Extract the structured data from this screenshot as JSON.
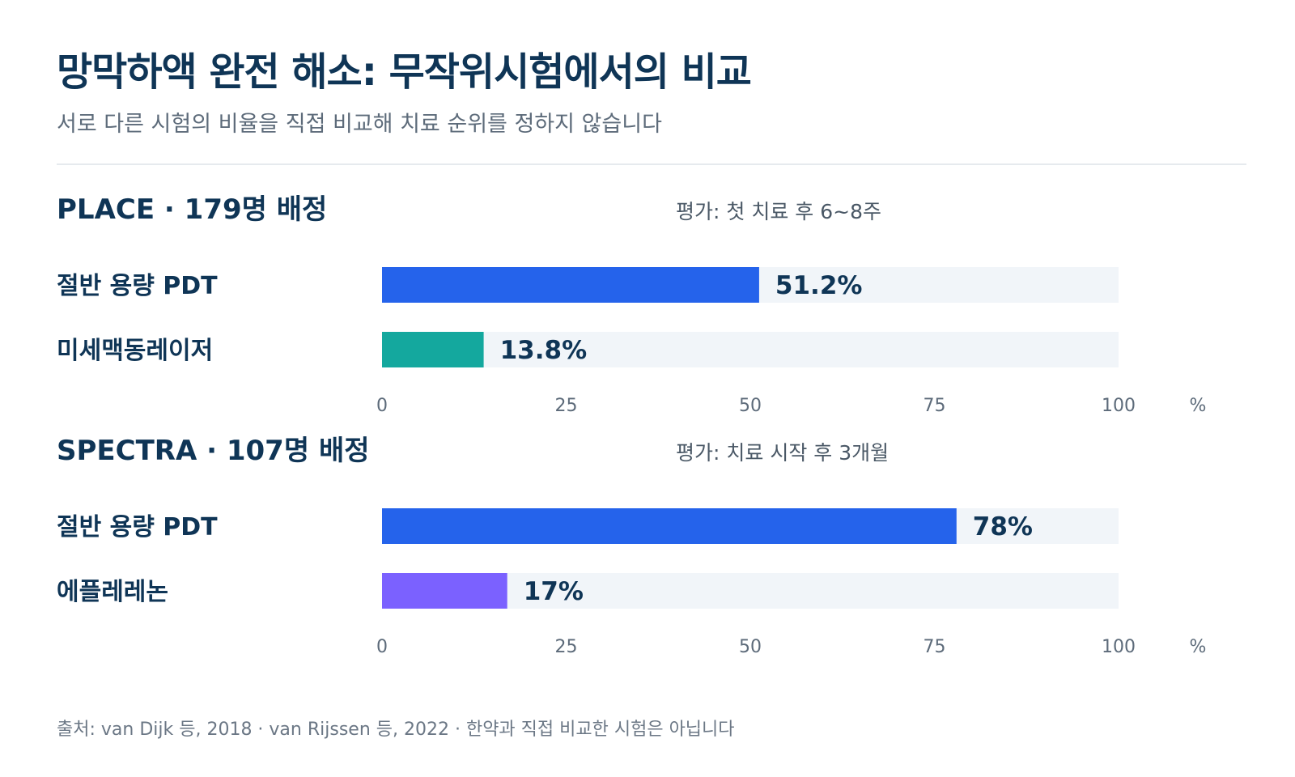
{
  "title": "망막하액 완전 해소: 무작위시험에서의 비교",
  "subtitle": "서로 다른 시험의 비율을 직접 비교해 치료 순위를 정하지 않습니다",
  "source": "출처: van Dijk 등, 2018 · van Rijssen 등, 2022 · 한약과 직접 비교한 시험은 아닙니다",
  "colors": {
    "half_dose_pdt": "#2563eb",
    "micropulse_laser": "#14a89e",
    "eplerenone": "#7b61ff",
    "track": "#f1f5f9",
    "text_dark": "#0f3556",
    "text_muted": "#5d6b7a"
  },
  "chart_data": [
    {
      "type": "bar",
      "orientation": "horizontal",
      "title": "PLACE · 179명 배정",
      "note": "평가: 첫 치료 후 6~8주",
      "categories": [
        "절반 용량 PDT",
        "미세맥동레이저"
      ],
      "values": [
        51.2,
        13.8
      ],
      "value_labels": [
        "51.2%",
        "13.8%"
      ],
      "colors": [
        "#2563eb",
        "#14a89e"
      ],
      "xlim": [
        0,
        100
      ],
      "xticks": [
        "0",
        "25",
        "50",
        "75",
        "100"
      ],
      "xunit": "%"
    },
    {
      "type": "bar",
      "orientation": "horizontal",
      "title": "SPECTRA · 107명 배정",
      "note": "평가: 치료 시작 후 3개월",
      "categories": [
        "절반 용량 PDT",
        "에플레레논"
      ],
      "values": [
        78,
        17
      ],
      "value_labels": [
        "78%",
        "17%"
      ],
      "colors": [
        "#2563eb",
        "#7b61ff"
      ],
      "xlim": [
        0,
        100
      ],
      "xticks": [
        "0",
        "25",
        "50",
        "75",
        "100"
      ],
      "xunit": "%"
    }
  ]
}
